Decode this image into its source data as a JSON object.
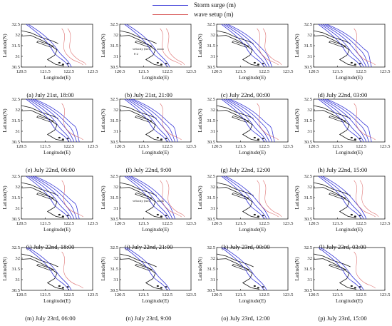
{
  "legend": {
    "storm_surge": {
      "label": "Storm surge (m)",
      "color": "#3b3bd8"
    },
    "wave_setup": {
      "label": "wave setup (m)",
      "color": "#d85a5a"
    }
  },
  "axes": {
    "xlabel": "Longitude(E)",
    "ylabel": "Latitude(N)",
    "xticks": [
      "120.5",
      "121.5",
      "122.5",
      "123.5"
    ],
    "yticks": [
      "32.5",
      "32",
      "31.5",
      "31",
      "30.5"
    ]
  },
  "velocity_labels": {
    "b": {
      "text": "velocity (m/s)",
      "scale": "0 2"
    },
    "j": {
      "text": "velocity (m/s)"
    }
  },
  "chart_data": {
    "type": "contour map grid",
    "x_range": [
      120.5,
      123.5
    ],
    "y_range": [
      30.5,
      32.5
    ],
    "series_names": [
      "Storm surge (m)",
      "wave setup (m)"
    ],
    "panels": [
      {
        "id": "a",
        "caption": "(a) July 21st, 18:00",
        "surge_level": 1,
        "setup_level": 2
      },
      {
        "id": "b",
        "caption": "(b) July 21st, 21:00",
        "surge_level": 1,
        "setup_level": 2
      },
      {
        "id": "c",
        "caption": "(c) July 22nd, 00:00",
        "surge_level": 3,
        "setup_level": 2
      },
      {
        "id": "d",
        "caption": "(d) July 22nd, 03:00",
        "surge_level": 4,
        "setup_level": 1
      },
      {
        "id": "e",
        "caption": "(e) July 22nd, 06:00",
        "surge_level": 4,
        "setup_level": 1
      },
      {
        "id": "f",
        "caption": "(f) July 22nd, 9:00",
        "surge_level": 4,
        "setup_level": 1
      },
      {
        "id": "g",
        "caption": "(g) July 22nd, 12:00",
        "surge_level": 4,
        "setup_level": 1
      },
      {
        "id": "h",
        "caption": "(h) July 22nd, 15:00",
        "surge_level": 4,
        "setup_level": 1
      },
      {
        "id": "i",
        "caption": "(i) July 22nd, 18:00",
        "surge_level": 4,
        "setup_level": 1
      },
      {
        "id": "j",
        "caption": "(j) July 22nd, 21:00",
        "surge_level": 3,
        "setup_level": 2
      },
      {
        "id": "k",
        "caption": "(k) July 23rd, 00:00",
        "surge_level": 2,
        "setup_level": 2
      },
      {
        "id": "l",
        "caption": "(l) July 23rd, 03:00",
        "surge_level": 2,
        "setup_level": 2
      },
      {
        "id": "m",
        "caption": "(m) July 23rd, 06:00",
        "surge_level": 1,
        "setup_level": 1
      },
      {
        "id": "n",
        "caption": "(n) July 23rd, 9:00",
        "surge_level": 1,
        "setup_level": 0
      },
      {
        "id": "o",
        "caption": "(o) July 23rd, 12:00",
        "surge_level": 1,
        "setup_level": 0
      },
      {
        "id": "p",
        "caption": "(p) July 23rd, 15:00",
        "surge_level": 1,
        "setup_level": 1
      }
    ]
  }
}
